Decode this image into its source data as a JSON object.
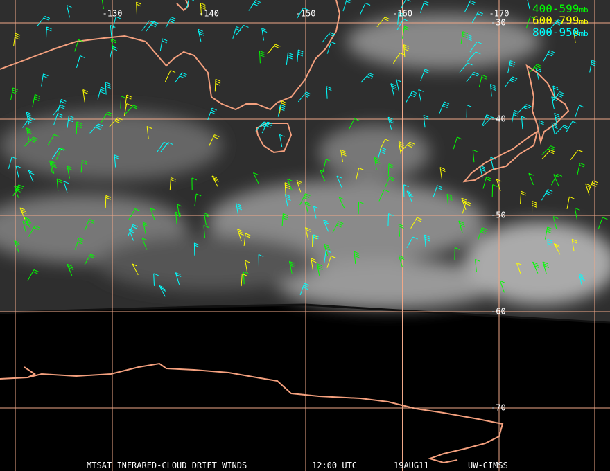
{
  "map": {
    "longitude_labels": [
      -130,
      -140,
      -150,
      -160,
      -170
    ],
    "latitude_labels": [
      -30,
      -40,
      -50,
      -60,
      -70
    ],
    "legend": [
      {
        "range": "400-599",
        "unit": "mb",
        "color": "#00ff00"
      },
      {
        "range": "600-799",
        "unit": "mb",
        "color": "#ffff00"
      },
      {
        "range": "800-950",
        "unit": "mb",
        "color": "#00ffff"
      }
    ],
    "footer": {
      "product": "MTSAT INFRARED-CLOUD DRIFT WINDS",
      "time": "12:00 UTC",
      "date": "19AUG11",
      "source": "UW-CIMSS"
    }
  }
}
